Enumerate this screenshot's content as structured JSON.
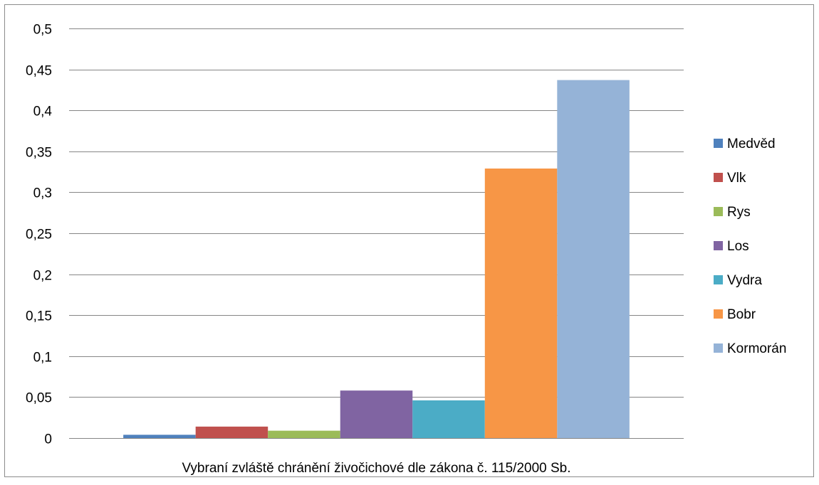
{
  "chart_data": {
    "type": "bar",
    "title": "",
    "xlabel": "",
    "ylabel": "",
    "categories": [
      "Vybraní zvláště chránění živočichové dle zákona č. 115/2000 Sb."
    ],
    "ylim": [
      0,
      0.5
    ],
    "yticks": [
      "0",
      "0,05",
      "0,1",
      "0,15",
      "0,2",
      "0,25",
      "0,3",
      "0,35",
      "0,4",
      "0,45",
      "0,5"
    ],
    "grid": true,
    "legend_position": "right",
    "series": [
      {
        "name": "Medvěd",
        "values": [
          0.004
        ],
        "color": "#4f81bd"
      },
      {
        "name": "Vlk",
        "values": [
          0.014
        ],
        "color": "#c0504d"
      },
      {
        "name": "Rys",
        "values": [
          0.009
        ],
        "color": "#9bbb59"
      },
      {
        "name": "Los",
        "values": [
          0.058
        ],
        "color": "#8064a2"
      },
      {
        "name": "Vydra",
        "values": [
          0.046
        ],
        "color": "#4bacc6"
      },
      {
        "name": "Bobr",
        "values": [
          0.329
        ],
        "color": "#f79646"
      },
      {
        "name": "Kormorán",
        "values": [
          0.437
        ],
        "color": "#95b3d7"
      }
    ]
  }
}
